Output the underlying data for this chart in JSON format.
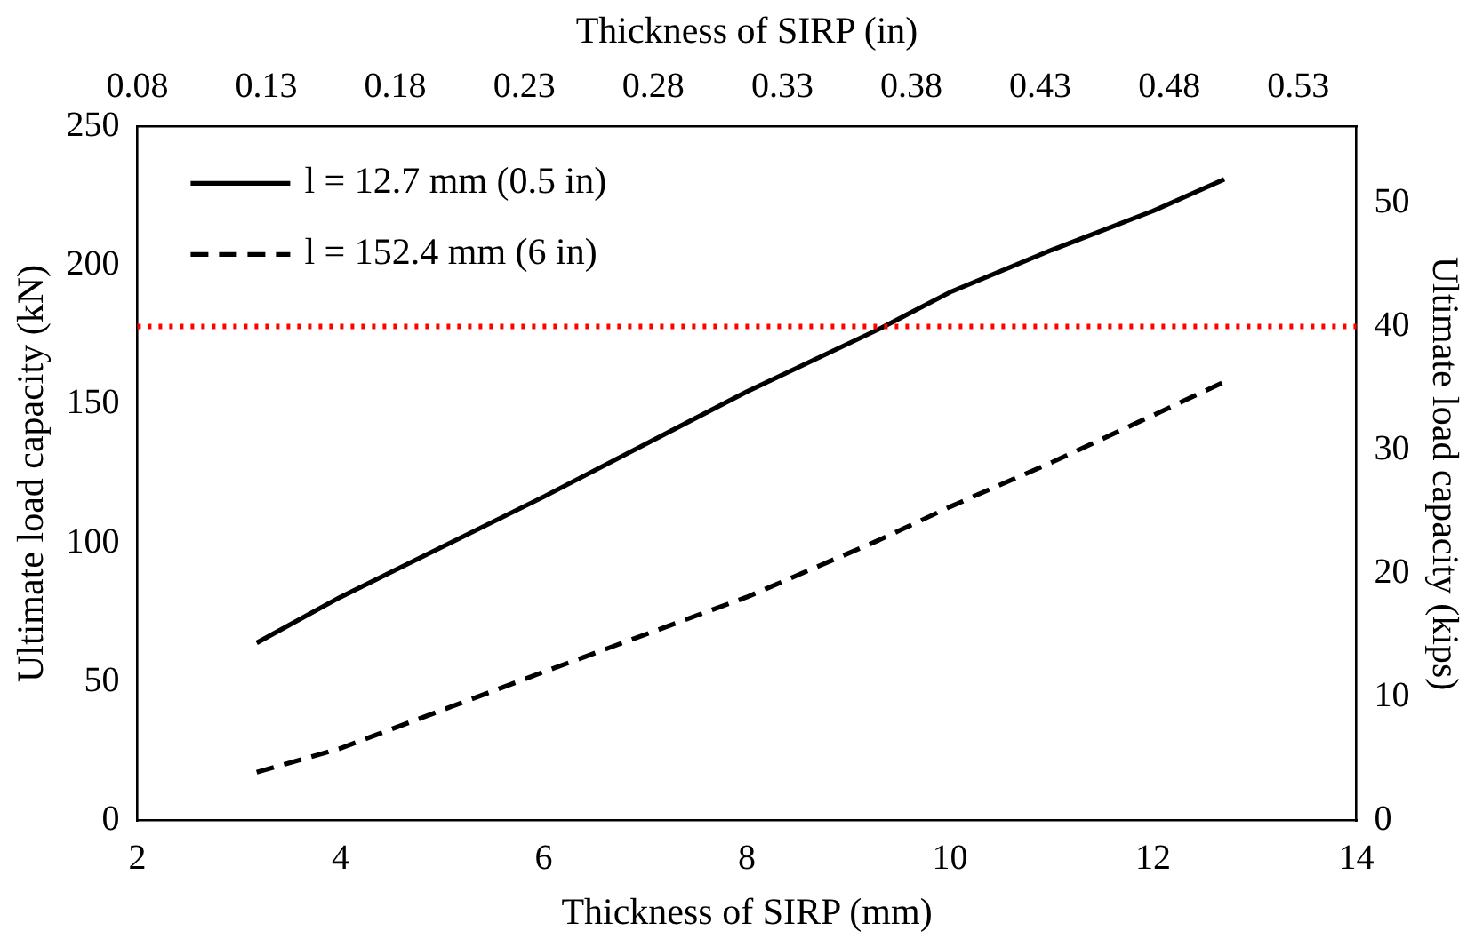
{
  "chart_data": {
    "type": "line",
    "xlabel": "Thickness of SIRP (mm)",
    "x2label": "Thickness of SIRP (in)",
    "ylabel": "Ultimate load capacity (kN)",
    "y2label": "Ultimate load capacity (kips)",
    "xlim": [
      2,
      14
    ],
    "xticks": [
      2,
      4,
      6,
      8,
      10,
      12,
      14
    ],
    "x2lim": [
      0.0787,
      0.5512
    ],
    "x2ticks": [
      {
        "value": 0.0787,
        "label": "0.08"
      },
      {
        "value": 0.1287,
        "label": "0.13"
      },
      {
        "value": 0.1787,
        "label": "0.18"
      },
      {
        "value": 0.2287,
        "label": "0.23"
      },
      {
        "value": 0.2787,
        "label": "0.28"
      },
      {
        "value": 0.3287,
        "label": "0.33"
      },
      {
        "value": 0.3787,
        "label": "0.38"
      },
      {
        "value": 0.4287,
        "label": "0.43"
      },
      {
        "value": 0.4787,
        "label": "0.48"
      },
      {
        "value": 0.5287,
        "label": "0.53"
      }
    ],
    "ylim": [
      0,
      250
    ],
    "yticks": [
      0,
      50,
      100,
      150,
      200,
      250
    ],
    "y2lim": [
      0,
      56.2
    ],
    "y2ticks": [
      0,
      10,
      20,
      30,
      40,
      50
    ],
    "x": [
      3.175,
      4,
      6,
      8,
      9.3,
      10,
      11,
      12,
      12.7
    ],
    "series": [
      {
        "name": "l = 12.7 mm (0.5 in)",
        "color": "#000000",
        "line_style": "solid",
        "values": [
          64,
          80.5,
          116.6,
          154.5,
          177,
          190.3,
          205.5,
          219.6,
          231
        ]
      },
      {
        "name": "l = 152.4 mm (6 in)",
        "color": "#000000",
        "line_style": "dashed",
        "values": [
          17.4,
          26,
          53.5,
          80.5,
          101,
          113,
          129,
          146,
          158
        ]
      }
    ],
    "ref_lines": [
      {
        "axis": "y2",
        "value": 40,
        "color": "#ff0000",
        "line_style": "dotted"
      }
    ],
    "grid": false,
    "legend": "top left",
    "marker": "none"
  }
}
